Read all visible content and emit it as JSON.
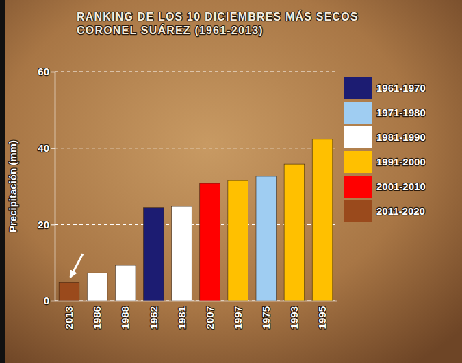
{
  "chart_data": {
    "type": "bar",
    "title": "RANKING DE LOS 10 DICIEMBRES MÁS SECOS CORONEL SUÁREZ (1961-2013)",
    "y_label": "Precipitación (mm)",
    "categories": [
      "2013",
      "1986",
      "1988",
      "1962",
      "1981",
      "2007",
      "1997",
      "1975",
      "1993",
      "1995"
    ],
    "series": [
      {
        "name": "1961-1970",
        "color": "#1c1c72",
        "values": [
          null,
          null,
          null,
          24.4,
          null,
          null,
          null,
          null,
          null,
          null
        ]
      },
      {
        "name": "1971-1980",
        "color": "#9fcdf2",
        "values": [
          null,
          null,
          null,
          null,
          null,
          null,
          null,
          32.6,
          null,
          null
        ]
      },
      {
        "name": "1981-1990",
        "color": "#ffffff",
        "values": [
          null,
          7.3,
          9.3,
          null,
          24.7,
          null,
          null,
          null,
          null,
          null
        ]
      },
      {
        "name": "1991-2000",
        "color": "#ffc000",
        "values": [
          null,
          null,
          null,
          null,
          null,
          null,
          31.5,
          null,
          35.8,
          42.3
        ]
      },
      {
        "name": "2001-2010",
        "color": "#ff0000",
        "values": [
          null,
          null,
          null,
          null,
          null,
          30.8,
          null,
          null,
          null,
          null
        ]
      },
      {
        "name": "2011-2020",
        "color": "#9a4a1c",
        "values": [
          4.8,
          null,
          null,
          null,
          null,
          null,
          null,
          null,
          null,
          null
        ]
      }
    ],
    "stacked": true,
    "ylim": [
      0,
      60
    ],
    "yticks": [
      0,
      20,
      40,
      60
    ],
    "grid": true,
    "legend": "upper right"
  }
}
